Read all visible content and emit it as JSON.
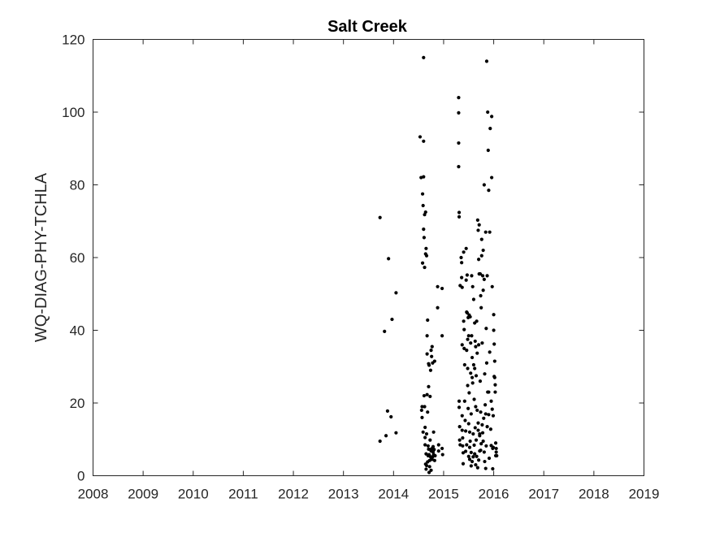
{
  "chart_data": {
    "type": "scatter",
    "title": "Salt Creek",
    "xlabel": "",
    "ylabel": "WQ-DIAG-PHY-TCHLA",
    "xlim": [
      2008,
      2019
    ],
    "ylim": [
      0,
      120
    ],
    "xticks": [
      "2008",
      "2009",
      "2010",
      "2011",
      "2012",
      "2013",
      "2014",
      "2015",
      "2016",
      "2017",
      "2018",
      "2019"
    ],
    "yticks": [
      "0",
      "20",
      "40",
      "60",
      "80",
      "100",
      "120"
    ],
    "grid": false,
    "marker_color": "#000000",
    "series": [
      {
        "points": [
          [
            2013.73,
            71
          ],
          [
            2013.73,
            9.5
          ],
          [
            2013.82,
            39.7
          ],
          [
            2013.85,
            11
          ],
          [
            2013.88,
            17.8
          ],
          [
            2013.9,
            59.7
          ],
          [
            2013.95,
            16.2
          ],
          [
            2013.97,
            43
          ],
          [
            2014.05,
            50.3
          ],
          [
            2014.05,
            11.8
          ],
          [
            2014.53,
            93.2
          ],
          [
            2014.55,
            82
          ],
          [
            2014.56,
            18
          ],
          [
            2014.57,
            16
          ],
          [
            2014.58,
            77.5
          ],
          [
            2014.58,
            58.5
          ],
          [
            2014.6,
            82.2
          ],
          [
            2014.6,
            92
          ],
          [
            2014.59,
            74.3
          ],
          [
            2014.6,
            67.8
          ],
          [
            2014.61,
            65.5
          ],
          [
            2014.61,
            22
          ],
          [
            2014.62,
            71.8
          ],
          [
            2014.62,
            57.3
          ],
          [
            2014.62,
            19
          ],
          [
            2014.63,
            13.3
          ],
          [
            2014.63,
            10.5
          ],
          [
            2014.64,
            72.5
          ],
          [
            2014.64,
            61
          ],
          [
            2014.64,
            3.2
          ],
          [
            2014.65,
            62.5
          ],
          [
            2014.65,
            1.8
          ],
          [
            2014.66,
            60.5
          ],
          [
            2014.66,
            11.5
          ],
          [
            2014.67,
            38.5
          ],
          [
            2014.67,
            33.5
          ],
          [
            2014.67,
            22.3
          ],
          [
            2014.68,
            42.8
          ],
          [
            2014.68,
            17.5
          ],
          [
            2014.68,
            3.8
          ],
          [
            2014.69,
            8.2
          ],
          [
            2014.69,
            5.5
          ],
          [
            2014.7,
            30.8
          ],
          [
            2014.7,
            24.5
          ],
          [
            2014.7,
            7.3
          ],
          [
            2014.71,
            30.4
          ],
          [
            2014.71,
            5.8
          ],
          [
            2014.71,
            0.9
          ],
          [
            2014.72,
            4.2
          ],
          [
            2014.72,
            2.5
          ],
          [
            2014.73,
            21.8
          ],
          [
            2014.73,
            9.8
          ],
          [
            2014.74,
            29
          ],
          [
            2014.74,
            7.2
          ],
          [
            2014.74,
            5.2
          ],
          [
            2014.75,
            34.5
          ],
          [
            2014.75,
            6.8
          ],
          [
            2014.75,
            1.5
          ],
          [
            2014.76,
            32.8
          ],
          [
            2014.76,
            4.8
          ],
          [
            2014.77,
            35.5
          ],
          [
            2014.77,
            7.5
          ],
          [
            2014.77,
            4.5
          ],
          [
            2014.78,
            31
          ],
          [
            2014.78,
            5.2
          ],
          [
            2014.79,
            8
          ],
          [
            2014.79,
            6.5
          ],
          [
            2014.8,
            12
          ],
          [
            2014.8,
            5.8
          ],
          [
            2014.81,
            7.2
          ],
          [
            2014.82,
            31.5
          ],
          [
            2014.82,
            4.2
          ],
          [
            2014.83,
            5.5
          ],
          [
            2014.88,
            52
          ],
          [
            2014.88,
            46.2
          ],
          [
            2014.9,
            8.5
          ],
          [
            2014.9,
            6.8
          ],
          [
            2014.97,
            38.5
          ],
          [
            2014.97,
            51.5
          ],
          [
            2014.97,
            7.5
          ],
          [
            2014.98,
            5.8
          ],
          [
            2014.6,
            115
          ],
          [
            2014.57,
            19
          ],
          [
            2014.59,
            12
          ],
          [
            2014.63,
            8.5
          ],
          [
            2014.65,
            6
          ],
          [
            2014.66,
            2.8
          ],
          [
            2015.3,
            104
          ],
          [
            2015.3,
            99.8
          ],
          [
            2015.3,
            91.5
          ],
          [
            2015.3,
            85
          ],
          [
            2015.31,
            72.4
          ],
          [
            2015.31,
            71.2
          ],
          [
            2015.31,
            20.5
          ],
          [
            2015.31,
            18.8
          ],
          [
            2015.32,
            13.5
          ],
          [
            2015.32,
            9.8
          ],
          [
            2015.33,
            52.3
          ],
          [
            2015.33,
            8.5
          ],
          [
            2015.35,
            60
          ],
          [
            2015.36,
            58.6
          ],
          [
            2015.36,
            54.5
          ],
          [
            2015.37,
            51.8
          ],
          [
            2015.37,
            36
          ],
          [
            2015.37,
            16.5
          ],
          [
            2015.37,
            12.5
          ],
          [
            2015.38,
            10.4
          ],
          [
            2015.38,
            8.2
          ],
          [
            2015.39,
            6.3
          ],
          [
            2015.39,
            3.3
          ],
          [
            2015.4,
            61.5
          ],
          [
            2015.4,
            42.5
          ],
          [
            2015.41,
            40.2
          ],
          [
            2015.41,
            35
          ],
          [
            2015.42,
            30.5
          ],
          [
            2015.42,
            20.5
          ],
          [
            2015.43,
            15.2
          ],
          [
            2015.44,
            12.3
          ],
          [
            2015.44,
            6.7
          ],
          [
            2015.45,
            62.5
          ],
          [
            2015.45,
            53.8
          ],
          [
            2015.46,
            45
          ],
          [
            2015.46,
            34.5
          ],
          [
            2015.46,
            8.5
          ],
          [
            2015.47,
            55.2
          ],
          [
            2015.47,
            44.8
          ],
          [
            2015.48,
            37.5
          ],
          [
            2015.48,
            29.5
          ],
          [
            2015.48,
            24.8
          ],
          [
            2015.49,
            43.5
          ],
          [
            2015.49,
            18.5
          ],
          [
            2015.5,
            38.5
          ],
          [
            2015.5,
            14.3
          ],
          [
            2015.5,
            5.3
          ],
          [
            2015.51,
            44.2
          ],
          [
            2015.51,
            22.8
          ],
          [
            2015.52,
            12
          ],
          [
            2015.52,
            7.8
          ],
          [
            2015.52,
            4.5
          ],
          [
            2015.53,
            43.7
          ],
          [
            2015.53,
            9.5
          ],
          [
            2015.54,
            36.5
          ],
          [
            2015.54,
            28.2
          ],
          [
            2015.55,
            17
          ],
          [
            2015.55,
            6.4
          ],
          [
            2015.55,
            2.7
          ],
          [
            2015.56,
            55
          ],
          [
            2015.56,
            38.5
          ],
          [
            2015.57,
            32.5
          ],
          [
            2015.57,
            27
          ],
          [
            2015.57,
            3.9
          ],
          [
            2015.58,
            52
          ],
          [
            2015.58,
            25.5
          ],
          [
            2015.59,
            11.5
          ],
          [
            2015.59,
            5.2
          ],
          [
            2015.6,
            48.5
          ],
          [
            2015.6,
            30.5
          ],
          [
            2015.61,
            21
          ],
          [
            2015.61,
            8.4
          ],
          [
            2015.62,
            42
          ],
          [
            2015.62,
            29.5
          ],
          [
            2015.62,
            6
          ],
          [
            2015.63,
            37
          ],
          [
            2015.63,
            13.2
          ],
          [
            2015.64,
            35.5
          ],
          [
            2015.64,
            19
          ],
          [
            2015.64,
            3
          ],
          [
            2015.65,
            27.5
          ],
          [
            2015.65,
            9.8
          ],
          [
            2015.66,
            42.5
          ],
          [
            2015.66,
            5.3
          ],
          [
            2015.67,
            33.7
          ],
          [
            2015.67,
            18
          ],
          [
            2015.68,
            70.3
          ],
          [
            2015.68,
            2.2
          ],
          [
            2015.69,
            67.5
          ],
          [
            2015.69,
            12.5
          ],
          [
            2015.7,
            59.5
          ],
          [
            2015.7,
            36
          ],
          [
            2015.7,
            4.3
          ],
          [
            2015.71,
            69
          ],
          [
            2015.71,
            55.5
          ],
          [
            2015.72,
            11
          ],
          [
            2015.72,
            6.8
          ],
          [
            2015.73,
            55.5
          ],
          [
            2015.73,
            26
          ],
          [
            2015.74,
            49.5
          ],
          [
            2015.74,
            17.5
          ],
          [
            2015.75,
            46.2
          ],
          [
            2015.75,
            8.8
          ],
          [
            2015.76,
            65
          ],
          [
            2015.76,
            60.5
          ],
          [
            2015.77,
            36.5
          ],
          [
            2015.77,
            14
          ],
          [
            2015.78,
            55
          ],
          [
            2015.78,
            11.8
          ],
          [
            2015.79,
            62
          ],
          [
            2015.79,
            51
          ],
          [
            2015.8,
            15.8
          ],
          [
            2015.81,
            54
          ],
          [
            2015.81,
            6.5
          ],
          [
            2015.82,
            28
          ],
          [
            2015.82,
            3.9
          ],
          [
            2015.83,
            19.5
          ],
          [
            2015.84,
            67
          ],
          [
            2015.84,
            2
          ],
          [
            2015.85,
            40.5
          ],
          [
            2015.85,
            8.2
          ],
          [
            2015.86,
            31
          ],
          [
            2015.87,
            13.5
          ],
          [
            2015.88,
            100
          ],
          [
            2015.88,
            23
          ],
          [
            2015.89,
            89.5
          ],
          [
            2015.9,
            78.5
          ],
          [
            2015.9,
            16.8
          ],
          [
            2015.91,
            4.8
          ],
          [
            2015.92,
            67
          ],
          [
            2015.92,
            34
          ],
          [
            2015.93,
            95.5
          ],
          [
            2015.94,
            12.8
          ],
          [
            2015.95,
            8.3
          ],
          [
            2015.96,
            98.8
          ],
          [
            2015.96,
            82
          ],
          [
            2015.97,
            52
          ],
          [
            2015.97,
            18.3
          ],
          [
            2015.98,
            1.9
          ],
          [
            2015.98,
            7.5
          ],
          [
            2015.99,
            16.5
          ],
          [
            2015.99,
            7.8
          ],
          [
            2016.0,
            44.3
          ],
          [
            2016.0,
            40
          ],
          [
            2016.01,
            36.2
          ],
          [
            2016.01,
            27.3
          ],
          [
            2016.02,
            31.5
          ],
          [
            2016.02,
            27
          ],
          [
            2016.03,
            23
          ],
          [
            2016.03,
            25
          ],
          [
            2016.04,
            9
          ],
          [
            2016.04,
            5.5
          ],
          [
            2016.05,
            7.5
          ],
          [
            2016.05,
            6.5
          ],
          [
            2016.06,
            5.5
          ],
          [
            2015.81,
            80
          ],
          [
            2015.86,
            114
          ],
          [
            2015.87,
            55
          ],
          [
            2015.9,
            23
          ],
          [
            2015.95,
            20.5
          ],
          [
            2015.84,
            17
          ],
          [
            2015.79,
            9.5
          ],
          [
            2015.74,
            7
          ],
          [
            2015.72,
            11.5
          ],
          [
            2015.69,
            14.5
          ]
        ]
      }
    ]
  }
}
